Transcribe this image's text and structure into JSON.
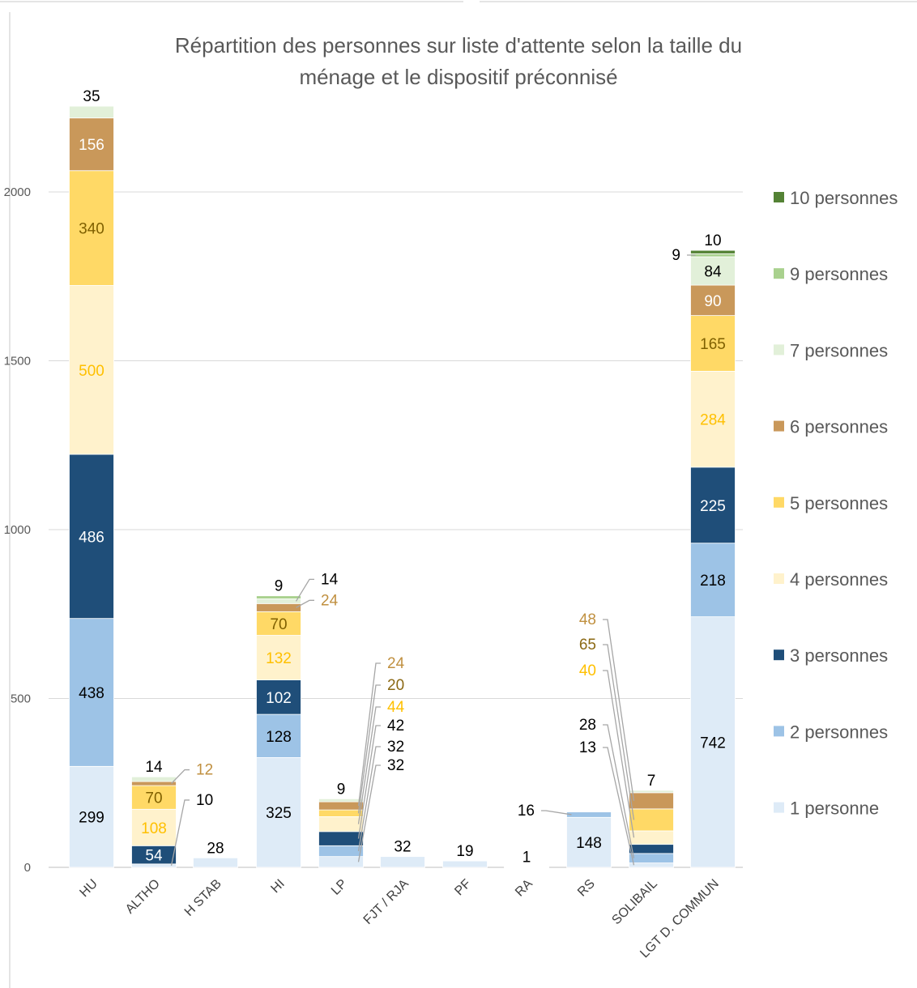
{
  "chart_data": {
    "type": "bar",
    "stacked": true,
    "title": "Répartition des personnes sur liste d'attente selon la taille du ménage et le dispositif préconnisé",
    "title_lines": [
      "Répartition des personnes sur liste d'attente selon la taille du",
      "ménage et le dispositif préconnisé"
    ],
    "categories": [
      "HU",
      "ALTHO",
      "H STAB",
      "HI",
      "LP",
      "FJT / RJA",
      "PF",
      "RA",
      "RS",
      "SOLIBAIL",
      "LGT D. COMMUN"
    ],
    "ylim": [
      0,
      2250
    ],
    "yticks": [
      0,
      500,
      1000,
      1500,
      2000
    ],
    "grid": true,
    "legend_position": "right",
    "series": [
      {
        "name": "1 personne",
        "color": "#DEEBF7",
        "label_color": "#000000",
        "values": [
          299,
          10,
          28,
          325,
          32,
          32,
          19,
          1,
          148,
          13,
          742
        ]
      },
      {
        "name": "2 personnes",
        "color": "#9DC3E6",
        "label_color": "#000000",
        "values": [
          438,
          0,
          0,
          128,
          32,
          0,
          0,
          0,
          16,
          28,
          218
        ]
      },
      {
        "name": "3 personnes",
        "color": "#1F4E79",
        "label_color": "#ffffff",
        "values": [
          486,
          54,
          0,
          102,
          42,
          0,
          0,
          0,
          0,
          27,
          225
        ]
      },
      {
        "name": "4 personnes",
        "color": "#FFF2CC",
        "label_color": "#FFC000",
        "values": [
          500,
          108,
          0,
          132,
          44,
          0,
          0,
          0,
          0,
          40,
          284
        ]
      },
      {
        "name": "5 personnes",
        "color": "#FFD966",
        "label_color": "#7F6000",
        "values": [
          340,
          70,
          0,
          70,
          20,
          0,
          0,
          0,
          0,
          65,
          165
        ]
      },
      {
        "name": "6 personnes",
        "color": "#C9985A",
        "label_color": "#ffffff",
        "values": [
          156,
          12,
          0,
          24,
          24,
          0,
          0,
          0,
          0,
          48,
          90
        ]
      },
      {
        "name": "7 personnes",
        "color": "#E2F0D9",
        "label_color": "#000000",
        "values": [
          35,
          14,
          0,
          14,
          9,
          0,
          0,
          0,
          0,
          7,
          84
        ]
      },
      {
        "name": "9 personnes",
        "color": "#A9D18E",
        "label_color": "#000000",
        "values": [
          0,
          0,
          0,
          9,
          0,
          0,
          0,
          0,
          0,
          0,
          9
        ]
      },
      {
        "name": "10 personnes",
        "color": "#548235",
        "label_color": "#000000",
        "values": [
          0,
          0,
          0,
          0,
          0,
          0,
          0,
          0,
          0,
          0,
          10
        ]
      }
    ],
    "legend_order": [
      "10 personnes",
      "9 personnes",
      "7 personnes",
      "6 personnes",
      "5 personnes",
      "4 personnes",
      "3 personnes",
      "2 personnes",
      "1 personne"
    ],
    "data_labels": [
      {
        "category": "HU",
        "series": "1 personne",
        "text": "299",
        "mode": "in"
      },
      {
        "category": "HU",
        "series": "2 personnes",
        "text": "438",
        "mode": "in"
      },
      {
        "category": "HU",
        "series": "3 personnes",
        "text": "486",
        "mode": "in"
      },
      {
        "category": "HU",
        "series": "4 personnes",
        "text": "500",
        "mode": "in"
      },
      {
        "category": "HU",
        "series": "5 personnes",
        "text": "340",
        "mode": "in"
      },
      {
        "category": "HU",
        "series": "6 personnes",
        "text": "156",
        "mode": "in"
      },
      {
        "category": "HU",
        "series": "7 personnes",
        "text": "35",
        "mode": "above"
      },
      {
        "category": "ALTHO",
        "series": "3 personnes",
        "text": "54",
        "mode": "in"
      },
      {
        "category": "ALTHO",
        "series": "4 personnes",
        "text": "108",
        "mode": "in"
      },
      {
        "category": "ALTHO",
        "series": "5 personnes",
        "text": "70",
        "mode": "in"
      },
      {
        "category": "ALTHO",
        "series": "7 personnes",
        "text": "14",
        "mode": "above"
      },
      {
        "category": "ALTHO",
        "series": "1 personne",
        "text": "10",
        "mode": "ext",
        "dx": 52,
        "dy": -75,
        "color": "#000000"
      },
      {
        "category": "ALTHO",
        "series": "6 personnes",
        "text": "12",
        "mode": "ext",
        "dx": 52,
        "dy": -11,
        "color": "#C09040"
      },
      {
        "category": "H STAB",
        "series": "1 personne",
        "text": "28",
        "mode": "above"
      },
      {
        "category": "HI",
        "series": "1 personne",
        "text": "325",
        "mode": "in"
      },
      {
        "category": "HI",
        "series": "2 personnes",
        "text": "128",
        "mode": "in"
      },
      {
        "category": "HI",
        "series": "3 personnes",
        "text": "102",
        "mode": "in"
      },
      {
        "category": "HI",
        "series": "4 personnes",
        "text": "132",
        "mode": "in"
      },
      {
        "category": "HI",
        "series": "5 personnes",
        "text": "70",
        "mode": "in"
      },
      {
        "category": "HI",
        "series": "9 personnes",
        "text": "9",
        "mode": "above"
      },
      {
        "category": "HI",
        "series": "6 personnes",
        "text": "24",
        "mode": "ext",
        "dx": 52,
        "dy": -3,
        "color": "#C09040"
      },
      {
        "category": "HI",
        "series": "7 personnes",
        "text": "14",
        "mode": "ext",
        "dx": 52,
        "dy": -21,
        "color": "#000000"
      },
      {
        "category": "LP",
        "series": "7 personnes",
        "text": "9",
        "mode": "above"
      },
      {
        "category": "LP",
        "series": "1 personne",
        "text": "32",
        "mode": "ext",
        "lx": 478,
        "ly": 951,
        "color": "#000000"
      },
      {
        "category": "LP",
        "series": "2 personnes",
        "text": "32",
        "mode": "ext",
        "lx": 478,
        "ly": 928,
        "color": "#000000"
      },
      {
        "category": "LP",
        "series": "3 personnes",
        "text": "42",
        "mode": "ext",
        "lx": 478,
        "ly": 902,
        "color": "#000000"
      },
      {
        "category": "LP",
        "series": "4 personnes",
        "text": "44",
        "mode": "ext",
        "lx": 478,
        "ly": 879,
        "color": "#FFC000"
      },
      {
        "category": "LP",
        "series": "5 personnes",
        "text": "20",
        "mode": "ext",
        "lx": 478,
        "ly": 852,
        "color": "#8B6914"
      },
      {
        "category": "LP",
        "series": "6 personnes",
        "text": "24",
        "mode": "ext",
        "lx": 478,
        "ly": 825,
        "color": "#C09040"
      },
      {
        "category": "FJT / RJA",
        "series": "1 personne",
        "text": "32",
        "mode": "above"
      },
      {
        "category": "PF",
        "series": "1 personne",
        "text": "19",
        "mode": "above"
      },
      {
        "category": "RA",
        "series": "1 personne",
        "text": "1",
        "mode": "above"
      },
      {
        "category": "RS",
        "series": "1 personne",
        "text": "148",
        "mode": "in"
      },
      {
        "category": "RS",
        "series": "2 personnes",
        "text": "16",
        "mode": "ext",
        "lx": 660,
        "ly": 1007,
        "color": "#000000"
      },
      {
        "category": "SOLIBAIL",
        "series": "7 personnes",
        "text": "7",
        "mode": "above"
      },
      {
        "category": "SOLIBAIL",
        "series": "1 personne",
        "text": "13",
        "mode": "ext",
        "lx": 736,
        "ly": 929,
        "color": "#000000"
      },
      {
        "category": "SOLIBAIL",
        "series": "2 personnes",
        "text": "28",
        "mode": "ext",
        "lx": 736,
        "ly": 901,
        "color": "#000000"
      },
      {
        "category": "SOLIBAIL",
        "series": "4 personnes",
        "text": "40",
        "mode": "ext",
        "lx": 736,
        "ly": 834,
        "color": "#FFC000"
      },
      {
        "category": "SOLIBAIL",
        "series": "5 personnes",
        "text": "65",
        "mode": "ext",
        "lx": 736,
        "ly": 802,
        "color": "#8B6914"
      },
      {
        "category": "SOLIBAIL",
        "series": "6 personnes",
        "text": "48",
        "mode": "ext",
        "lx": 736,
        "ly": 771,
        "color": "#C09040"
      },
      {
        "category": "LGT D. COMMUN",
        "series": "1 personne",
        "text": "742",
        "mode": "in"
      },
      {
        "category": "LGT D. COMMUN",
        "series": "2 personnes",
        "text": "218",
        "mode": "in"
      },
      {
        "category": "LGT D. COMMUN",
        "series": "3 personnes",
        "text": "225",
        "mode": "in"
      },
      {
        "category": "LGT D. COMMUN",
        "series": "4 personnes",
        "text": "284",
        "mode": "in"
      },
      {
        "category": "LGT D. COMMUN",
        "series": "5 personnes",
        "text": "165",
        "mode": "in"
      },
      {
        "category": "LGT D. COMMUN",
        "series": "6 personnes",
        "text": "90",
        "mode": "in"
      },
      {
        "category": "LGT D. COMMUN",
        "series": "7 personnes",
        "text": "84",
        "mode": "in"
      },
      {
        "category": "LGT D. COMMUN",
        "series": "10 personnes",
        "text": "10",
        "mode": "above"
      },
      {
        "category": "LGT D. COMMUN",
        "series": "9 personnes",
        "text": "9",
        "mode": "ext",
        "lx": 840,
        "ly": 321,
        "color": "#000000"
      }
    ]
  }
}
